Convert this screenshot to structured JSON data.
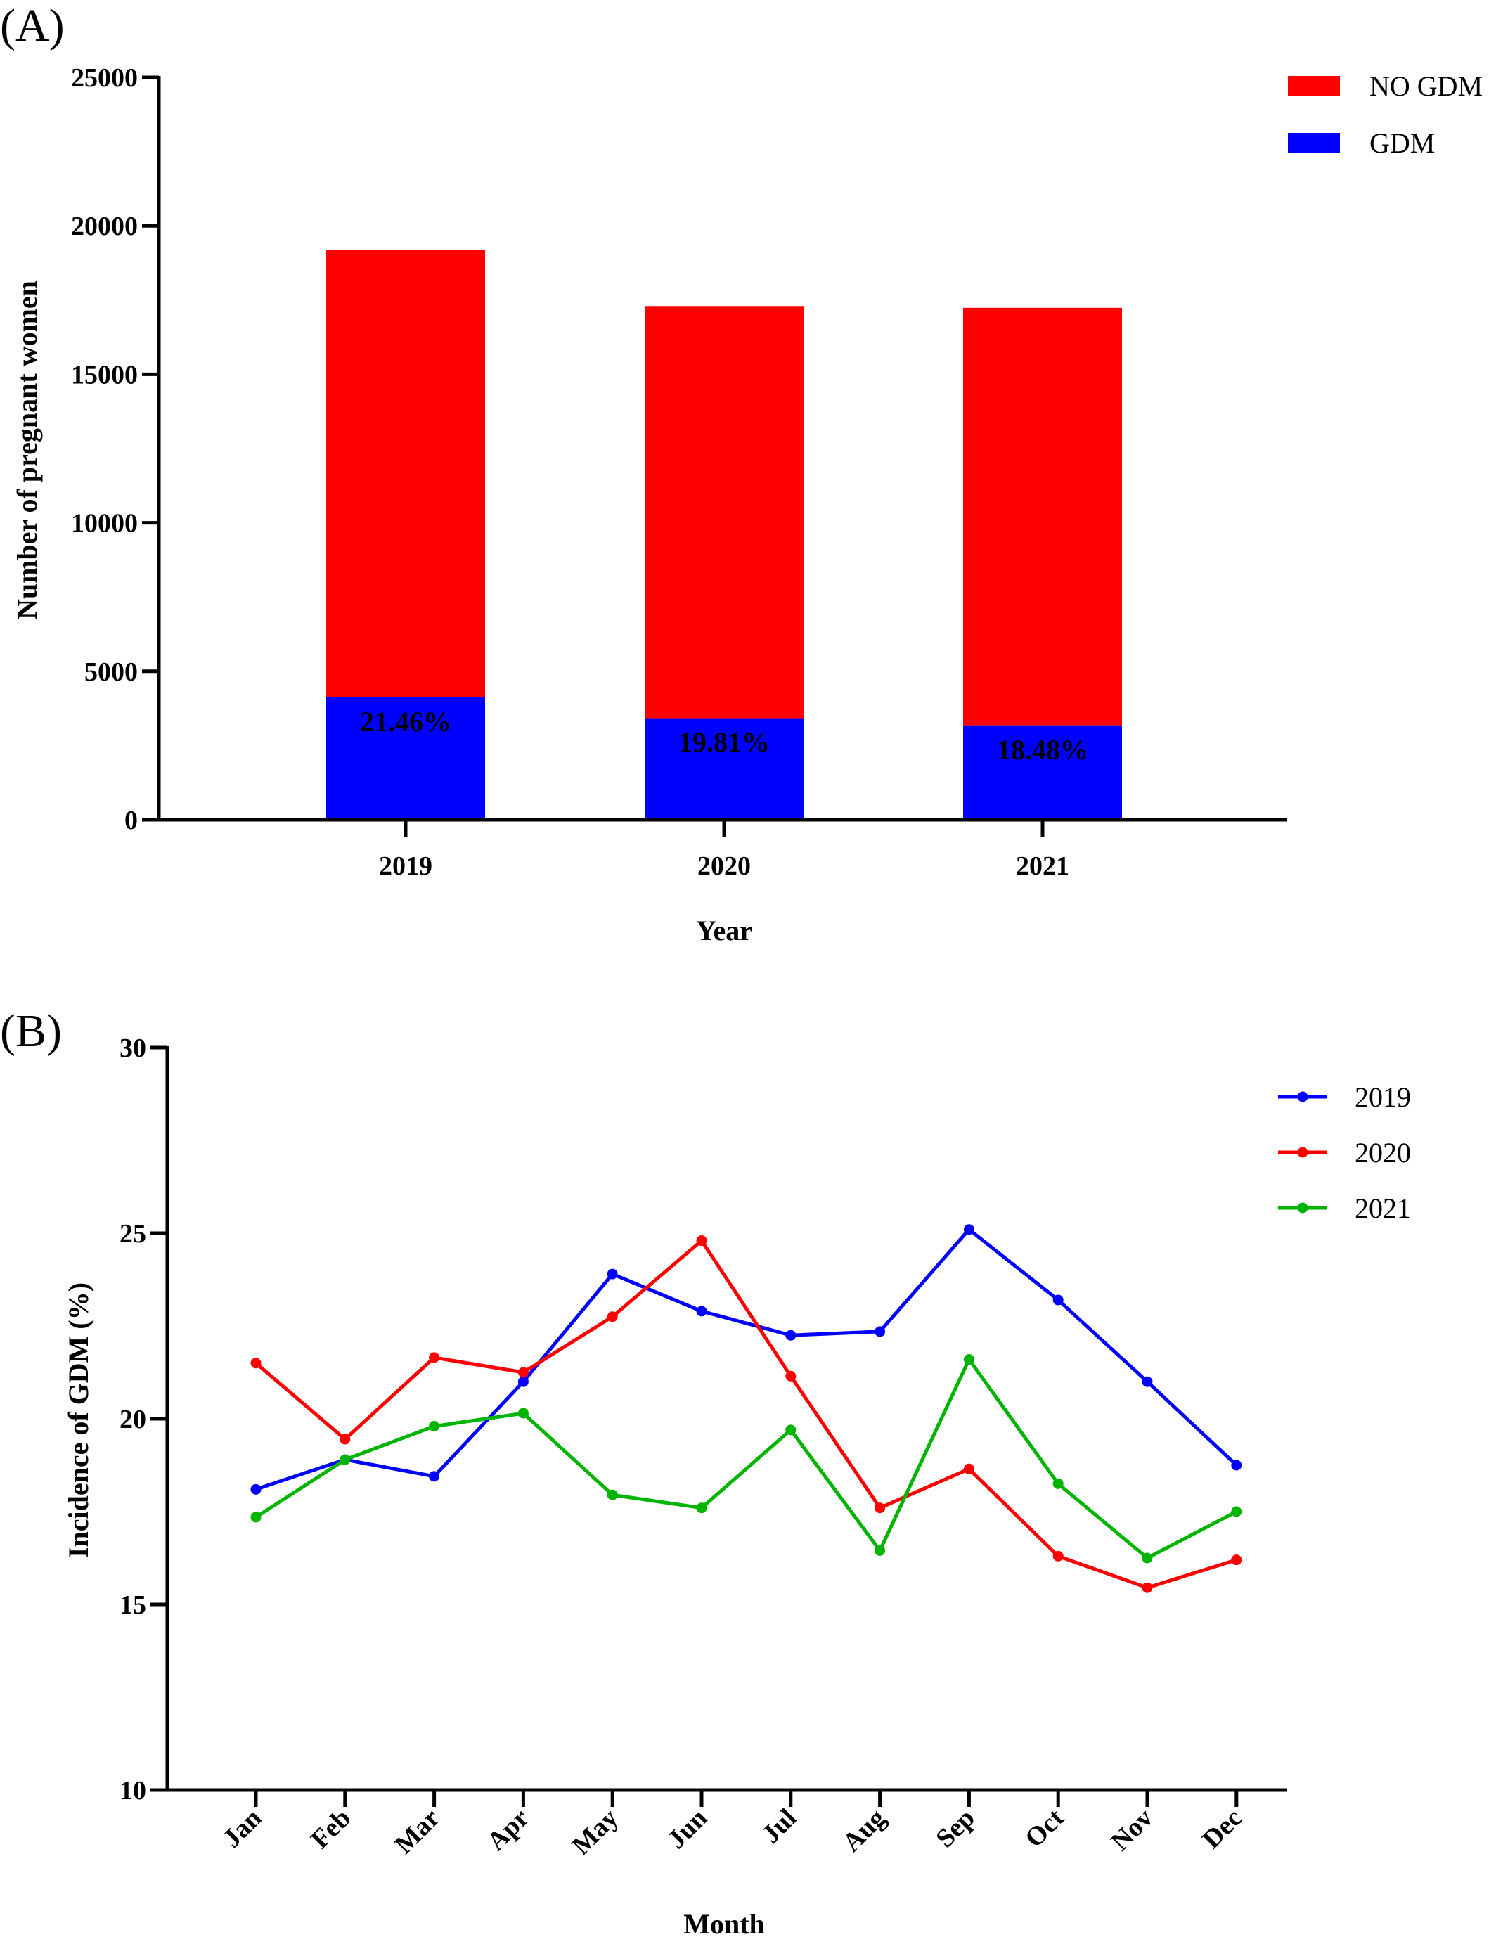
{
  "colors": {
    "no_gdm": "#ff0000",
    "gdm": "#0000ff",
    "y2019": "#0000ff",
    "y2020": "#ff0000",
    "y2021": "#00b400"
  },
  "chart_data": [
    {
      "panel_label": "(A)",
      "type": "bar",
      "stacked": true,
      "categories": [
        "2019",
        "2020",
        "2021"
      ],
      "series": [
        {
          "name": "GDM",
          "color": "#0000ff",
          "values": [
            4120,
            3420,
            3180
          ]
        },
        {
          "name": "NO GDM",
          "color": "#ff0000",
          "values": [
            15080,
            13880,
            14060
          ]
        }
      ],
      "data_labels": [
        "21.46%",
        "19.81%",
        "18.48%"
      ],
      "xlabel": "Year",
      "ylabel": "Number of pregnant women",
      "ylim": [
        0,
        25000
      ],
      "yticks": [
        "0",
        "5000",
        "10000",
        "15000",
        "20000",
        "25000"
      ],
      "legend_order": [
        "NO GDM",
        "GDM"
      ],
      "legend_position": "top-right",
      "grid": false
    },
    {
      "panel_label": "(B)",
      "type": "line",
      "categories": [
        "Jan",
        "Feb",
        "Mar",
        "Apr",
        "May",
        "Jun",
        "Jul",
        "Aug",
        "Sep",
        "Oct",
        "Nov",
        "Dec"
      ],
      "series": [
        {
          "name": "2019",
          "color": "#0000ff",
          "values": [
            18.1,
            18.9,
            18.45,
            21.0,
            23.9,
            22.9,
            22.25,
            22.35,
            25.1,
            23.2,
            21.0,
            18.75
          ]
        },
        {
          "name": "2020",
          "color": "#ff0000",
          "values": [
            21.5,
            19.45,
            21.65,
            21.25,
            22.75,
            24.8,
            21.15,
            17.6,
            18.65,
            16.3,
            15.45,
            16.2
          ]
        },
        {
          "name": "2021",
          "color": "#00b400",
          "values": [
            17.35,
            18.9,
            19.8,
            20.15,
            17.95,
            17.6,
            19.7,
            16.45,
            21.6,
            18.25,
            16.25,
            17.5
          ]
        }
      ],
      "xlabel": "Month",
      "ylabel": "Incidence of GDM (%)",
      "ylim": [
        10,
        30
      ],
      "yticks": [
        "10",
        "15",
        "20",
        "25",
        "30"
      ],
      "legend_position": "top-right",
      "grid": false
    }
  ]
}
